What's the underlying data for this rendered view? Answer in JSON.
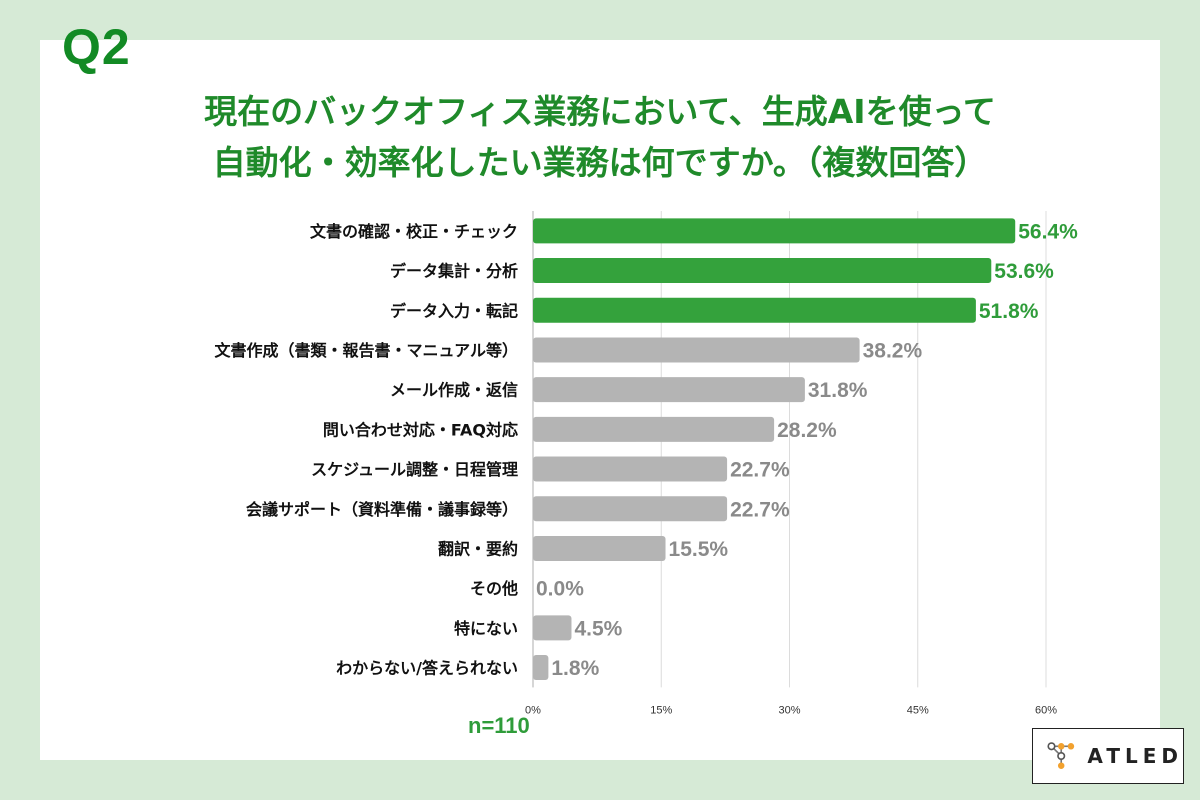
{
  "question": "Q2",
  "title_line1": "現在のバックオフィス業務において、生成AIを使って",
  "title_line2": "自動化・効率化したい業務は何ですか。（複数回答）",
  "sample_size": "n=110",
  "logo_text": "ATLED",
  "colors": {
    "background": "#d6ead6",
    "accent": "#2f9c3a",
    "highlight_bar": "#34a23c",
    "other_bar": "#b4b4b4",
    "highlight_label": "#2f9c3a",
    "other_label": "#8a8a8a",
    "logo_dot": "#f2a12e"
  },
  "chart_data": {
    "type": "bar",
    "orientation": "horizontal",
    "title": "現在のバックオフィス業務において、生成AIを使って自動化・効率化したい業務は何ですか。（複数回答）",
    "categories": [
      "文書の確認・校正・チェック",
      "データ集計・分析",
      "データ入力・転記",
      "文書作成（書類・報告書・マニュアル等）",
      "メール作成・返信",
      "問い合わせ対応・FAQ対応",
      "スケジュール調整・日程管理",
      "会議サポート（資料準備・議事録等）",
      "翻訳・要約",
      "その他",
      "特にない",
      "わからない/答えられない"
    ],
    "values": [
      56.4,
      53.6,
      51.8,
      38.2,
      31.8,
      28.2,
      22.7,
      22.7,
      15.5,
      0.0,
      4.5,
      1.8
    ],
    "value_labels": [
      "56.4%",
      "53.6%",
      "51.8%",
      "38.2%",
      "31.8%",
      "28.2%",
      "22.7%",
      "22.7%",
      "15.5%",
      "0.0%",
      "4.5%",
      "1.8%"
    ],
    "highlighted": [
      true,
      true,
      true,
      false,
      false,
      false,
      false,
      false,
      false,
      false,
      false,
      false
    ],
    "x_ticks": [
      0,
      15,
      30,
      45,
      60
    ],
    "x_tick_labels": [
      "0%",
      "15%",
      "30%",
      "45%",
      "60%"
    ],
    "xlim": [
      0,
      60
    ],
    "grid": true,
    "xlabel": "",
    "ylabel": ""
  }
}
